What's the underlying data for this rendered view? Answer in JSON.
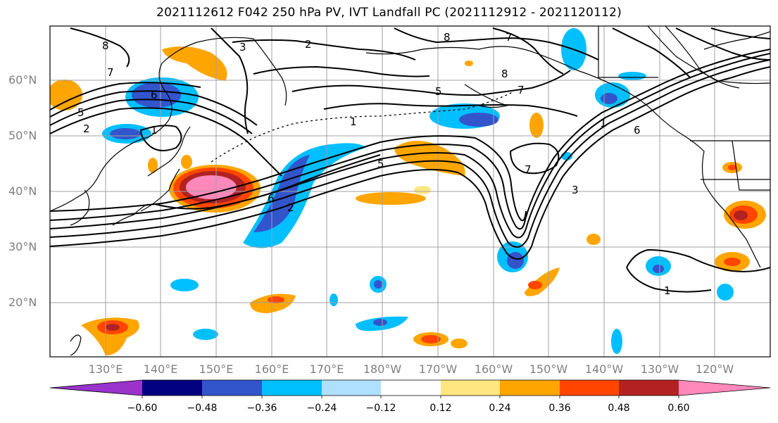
{
  "title": "2021112612 F042 250 hPa PV, IVT Landfall PC (2021112912 - 2021120112)",
  "lat_labels": [
    "60°N",
    "50°N",
    "40°N",
    "30°N",
    "20°N"
  ],
  "lon_labels": [
    "130°E",
    "140°E",
    "150°E",
    "160°E",
    "170°E",
    "180°W",
    "170°W",
    "160°W",
    "150°W",
    "140°W",
    "130°W",
    "120°W"
  ],
  "colorbar": {
    "tick_labels": [
      "−0.60",
      "−0.48",
      "−0.36",
      "−0.24",
      "−0.12",
      "0.12",
      "0.24",
      "0.36",
      "0.48",
      "0.60"
    ],
    "colors": [
      "#9933cc",
      "#000080",
      "#3355cc",
      "#00bfff",
      "#b0e0ff",
      "#ffffff",
      "#ffe680",
      "#ffa500",
      "#ff4500",
      "#b22222",
      "#ff88bb"
    ]
  },
  "contour_labels": [
    "8",
    "7",
    "3",
    "2",
    "8",
    "7",
    "8",
    "6",
    "5",
    "2",
    "1",
    "1",
    "5",
    "7",
    "6",
    "1",
    "7",
    "3",
    "5",
    "6",
    "2",
    "1"
  ],
  "colors": {
    "grid": "#a0a0a0",
    "coast": "#000000",
    "contour": "#000000",
    "label_gray": "#808080"
  }
}
